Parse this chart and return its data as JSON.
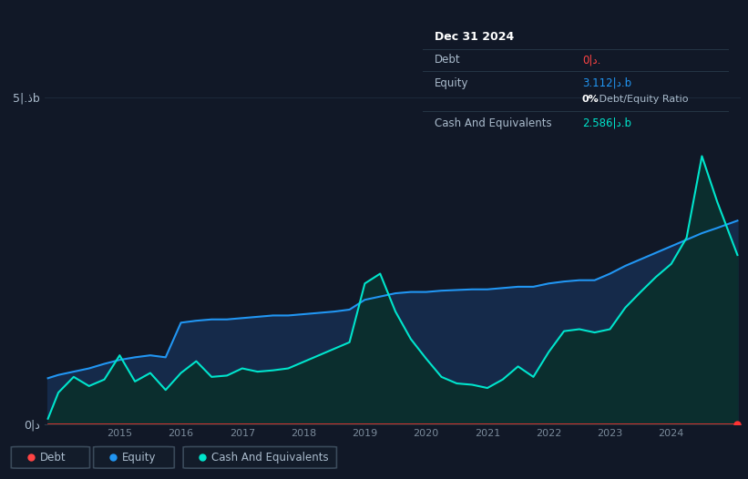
{
  "background_color": "#111827",
  "plot_bg_color": "#111827",
  "grid_color": "#1e2d3d",
  "ylabel": "",
  "xlabel": "",
  "ylim": [
    0,
    5.5
  ],
  "ytick_labels": [
    "0|د",
    "5|.ذb"
  ],
  "legend_labels": [
    "Debt",
    "Equity",
    "Cash And Equivalents"
  ],
  "legend_colors": [
    "#ff4444",
    "#2196f3",
    "#00e5cc"
  ],
  "debt_color": "#ff3333",
  "equity_color": "#2196f3",
  "cash_color": "#00e5cc",
  "equity_fill_top": "#1a3a6a",
  "equity_fill_bot": "#0d1e3a",
  "cash_fill_color": "#0d3535",
  "tooltip_bg": "#080e18",
  "tooltip_border": "#2a3a50",
  "tooltip_title": "Dec 31 2024",
  "tooltip_debt_label": "Debt",
  "tooltip_debt_value": "0|د.",
  "tooltip_debt_color": "#ff4444",
  "tooltip_equity_label": "Equity",
  "tooltip_equity_value": "3.112|د.b",
  "tooltip_equity_color": "#2196f3",
  "tooltip_ratio_label": "0% Debt/Equity Ratio",
  "tooltip_ratio_bold": "0%",
  "tooltip_cash_label": "Cash And Equivalents",
  "tooltip_cash_value": "2.586|د.b",
  "tooltip_cash_color": "#00e5cc",
  "years": [
    2013.83,
    2014.0,
    2014.25,
    2014.5,
    2014.75,
    2015.0,
    2015.25,
    2015.5,
    2015.75,
    2016.0,
    2016.25,
    2016.5,
    2016.75,
    2017.0,
    2017.25,
    2017.5,
    2017.75,
    2018.0,
    2018.25,
    2018.5,
    2018.75,
    2019.0,
    2019.25,
    2019.5,
    2019.75,
    2020.0,
    2020.25,
    2020.5,
    2020.75,
    2021.0,
    2021.25,
    2021.5,
    2021.75,
    2022.0,
    2022.25,
    2022.5,
    2022.75,
    2023.0,
    2023.25,
    2023.5,
    2023.75,
    2024.0,
    2024.25,
    2024.5,
    2024.75,
    2025.08
  ],
  "equity": [
    0.7,
    0.75,
    0.8,
    0.85,
    0.92,
    0.98,
    1.02,
    1.05,
    1.02,
    1.55,
    1.58,
    1.6,
    1.6,
    1.62,
    1.64,
    1.66,
    1.66,
    1.68,
    1.7,
    1.72,
    1.75,
    1.9,
    1.95,
    2.0,
    2.02,
    2.02,
    2.04,
    2.05,
    2.06,
    2.06,
    2.08,
    2.1,
    2.1,
    2.15,
    2.18,
    2.2,
    2.2,
    2.3,
    2.42,
    2.52,
    2.62,
    2.72,
    2.82,
    2.92,
    3.0,
    3.112
  ],
  "cash": [
    0.08,
    0.48,
    0.72,
    0.58,
    0.68,
    1.05,
    0.65,
    0.78,
    0.52,
    0.78,
    0.96,
    0.72,
    0.74,
    0.85,
    0.8,
    0.82,
    0.85,
    0.95,
    1.05,
    1.15,
    1.25,
    2.15,
    2.3,
    1.72,
    1.3,
    1.0,
    0.72,
    0.62,
    0.6,
    0.55,
    0.68,
    0.88,
    0.72,
    1.1,
    1.42,
    1.45,
    1.4,
    1.45,
    1.78,
    2.02,
    2.25,
    2.45,
    2.85,
    4.1,
    3.4,
    2.586
  ],
  "debt": [
    0.0,
    0.0,
    0.0,
    0.0,
    0.0,
    0.0,
    0.0,
    0.0,
    0.0,
    0.0,
    0.0,
    0.0,
    0.0,
    0.0,
    0.0,
    0.0,
    0.0,
    0.0,
    0.0,
    0.0,
    0.0,
    0.0,
    0.0,
    0.0,
    0.0,
    0.0,
    0.0,
    0.0,
    0.0,
    0.0,
    0.0,
    0.0,
    0.0,
    0.0,
    0.0,
    0.0,
    0.0,
    0.0,
    0.0,
    0.0,
    0.0,
    0.0,
    0.0,
    0.0,
    0.0,
    0.0
  ],
  "xtick_years": [
    2015,
    2016,
    2017,
    2018,
    2019,
    2020,
    2021,
    2022,
    2023,
    2024
  ],
  "figsize": [
    8.21,
    5.26
  ],
  "dpi": 100
}
